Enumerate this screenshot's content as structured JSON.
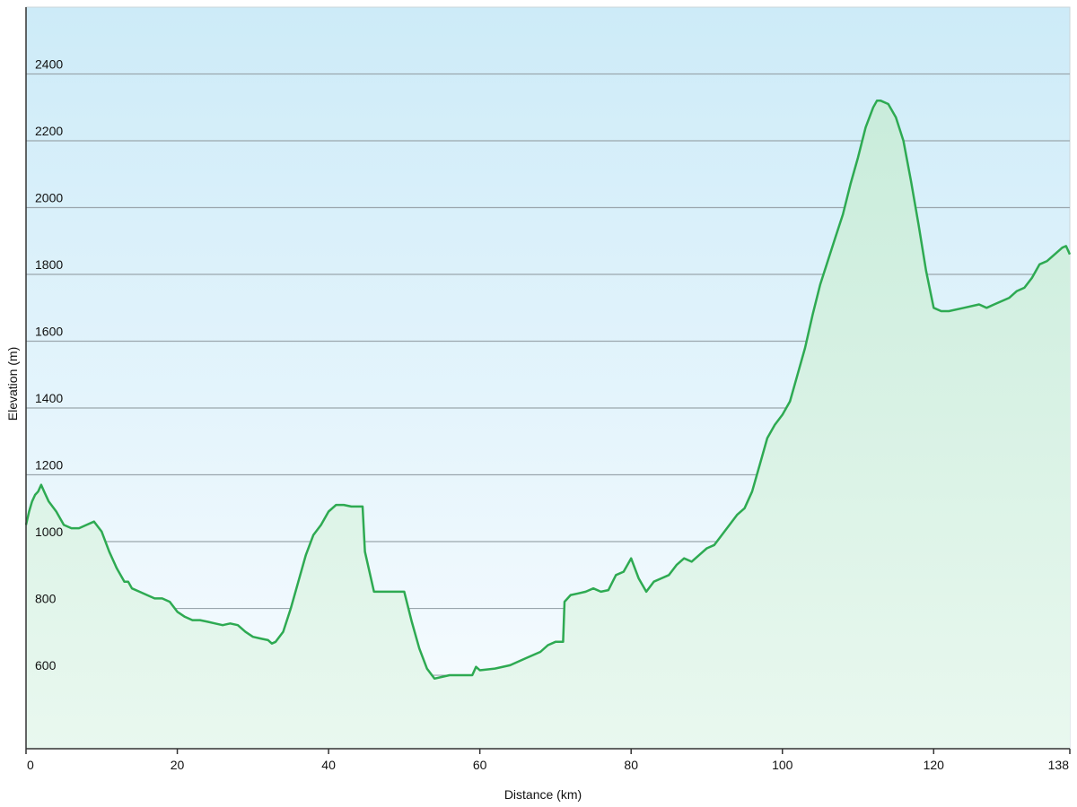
{
  "chart_data": {
    "type": "area",
    "xlabel": "Distance  (km)",
    "ylabel": "Elevation (m)",
    "xlim": [
      0,
      138
    ],
    "ylim": [
      380,
      2600
    ],
    "x_ticks": [
      {
        "value": 0,
        "label": "0"
      },
      {
        "value": 20,
        "label": "20"
      },
      {
        "value": 40,
        "label": "40"
      },
      {
        "value": 60,
        "label": "60"
      },
      {
        "value": 80,
        "label": "80"
      },
      {
        "value": 100,
        "label": "100"
      },
      {
        "value": 120,
        "label": "120"
      },
      {
        "value": 138,
        "label": "138"
      }
    ],
    "y_ticks": [
      {
        "value": 600,
        "label": "600"
      },
      {
        "value": 800,
        "label": "800"
      },
      {
        "value": 1000,
        "label": "1000"
      },
      {
        "value": 1200,
        "label": "1200"
      },
      {
        "value": 1400,
        "label": "1400"
      },
      {
        "value": 1600,
        "label": "1600"
      },
      {
        "value": 1800,
        "label": "1800"
      },
      {
        "value": 2000,
        "label": "2000"
      },
      {
        "value": 2200,
        "label": "2200"
      },
      {
        "value": 2400,
        "label": "2400"
      }
    ],
    "grid": true,
    "colors": {
      "line": "#2eaa52",
      "fill_top": "#c9ecdb",
      "fill_bottom": "#e9f8ef",
      "bg_top": "#cdebf8",
      "bg_bottom": "#f8fcff",
      "grid": "#9aa6ad",
      "axis": "#333333"
    },
    "series": [
      {
        "x": [
          0,
          0.4,
          0.8,
          1.2,
          1.6,
          2.0,
          2.4,
          3.0,
          4.0,
          5.0,
          6.0,
          7.0,
          8.0,
          9.0,
          10.0,
          11.0,
          12.0,
          13.0,
          13.5,
          14.0,
          15.0,
          16.0,
          17.0,
          18.0,
          19.0,
          20.0,
          21.0,
          22.0,
          23.0,
          24.0,
          25.0,
          26.0,
          27.0,
          28.0,
          29.0,
          30.0,
          31.0,
          32.0,
          32.5,
          33.0,
          34.0,
          35.0,
          36.0,
          37.0,
          38.0,
          39.0,
          40.0,
          41.0,
          42.0,
          43.0,
          44.5,
          44.8,
          46.0,
          47.0,
          49.0,
          50.0,
          51.0,
          52.0,
          53.0,
          54.0,
          55.0,
          56.0,
          57.0,
          58.0,
          59.0,
          59.5,
          60.0,
          62.0,
          64.0,
          66.0,
          68.0,
          69.0,
          70.0,
          71.0,
          71.2,
          72.0,
          73.0,
          74.0,
          75.0,
          76.0,
          77.0,
          78.0,
          79.0,
          80.0,
          81.0,
          82.0,
          83.0,
          84.0,
          85.0,
          86.0,
          87.0,
          88.0,
          89.0,
          90.0,
          91.0,
          92.0,
          93.0,
          94.0,
          95.0,
          96.0,
          97.0,
          98.0,
          99.0,
          100.0,
          101.0,
          102.0,
          103.0,
          104.0,
          105.0,
          106.0,
          107.0,
          108.0,
          109.0,
          110.0,
          111.0,
          112.0,
          112.5,
          113.0,
          114.0,
          115.0,
          116.0,
          117.0,
          118.0,
          119.0,
          120.0,
          121.0,
          121.5,
          122.0,
          124.0,
          126.0,
          127.0,
          128.0,
          130.0,
          131.0,
          132.0,
          133.0,
          134.0,
          135.0,
          136.0,
          137.0,
          137.5,
          138.0
        ],
        "y": [
          1050,
          1090,
          1120,
          1140,
          1150,
          1170,
          1150,
          1120,
          1090,
          1050,
          1040,
          1040,
          1050,
          1060,
          1030,
          970,
          920,
          880,
          880,
          860,
          850,
          840,
          830,
          830,
          820,
          790,
          775,
          765,
          765,
          760,
          755,
          750,
          755,
          750,
          730,
          715,
          710,
          705,
          695,
          700,
          730,
          800,
          880,
          960,
          1020,
          1050,
          1090,
          1110,
          1110,
          1105,
          1105,
          970,
          850,
          850,
          850,
          850,
          760,
          680,
          620,
          590,
          595,
          600,
          600,
          600,
          600,
          625,
          615,
          620,
          630,
          650,
          670,
          690,
          700,
          700,
          820,
          840,
          845,
          850,
          860,
          850,
          855,
          900,
          910,
          950,
          890,
          850,
          880,
          890,
          900,
          930,
          950,
          940,
          960,
          980,
          990,
          1020,
          1050,
          1080,
          1100,
          1150,
          1230,
          1310,
          1350,
          1380,
          1420,
          1500,
          1580,
          1680,
          1770,
          1840,
          1910,
          1980,
          2070,
          2150,
          2240,
          2300,
          2320,
          2320,
          2310,
          2270,
          2200,
          2080,
          1950,
          1810,
          1700,
          1690,
          1690,
          1690,
          1700,
          1710,
          1700,
          1710,
          1730,
          1750,
          1760,
          1790,
          1830,
          1840,
          1860,
          1880,
          1885,
          1860
        ]
      }
    ]
  }
}
